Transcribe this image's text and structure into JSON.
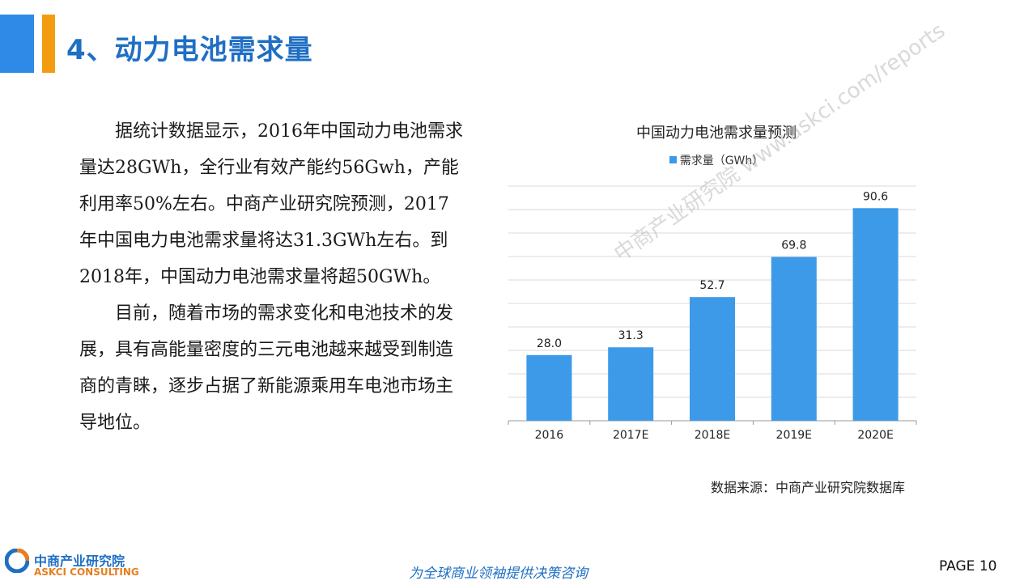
{
  "header": {
    "title": "4、动力电池需求量"
  },
  "body": {
    "paragraph1": "据统计数据显示，2016年中国动力电池需求量达28GWh，全行业有效产能约56Gwh，产能利用率50%左右。中商产业研究院预测，2017年中国电力电池需求量将达31.3GWh左右。到2018年，中国动力电池需求量将超50GWh。",
    "paragraph2": "目前，随着市场的需求变化和电池技术的发展，具有高能量密度的三元电池越来越受到制造商的青睐，逐步占据了新能源乘用车电池市场主导地位。"
  },
  "chart_data": {
    "type": "bar",
    "title": "中国动力电池需求量预测",
    "categories": [
      "2016",
      "2017E",
      "2018E",
      "2019E",
      "2020E"
    ],
    "series": [
      {
        "name": "需求量（GWh）",
        "values": [
          28.0,
          31.3,
          52.7,
          69.8,
          90.6
        ]
      }
    ],
    "data_labels": [
      "28.0",
      "31.3",
      "52.7",
      "69.8",
      "90.6"
    ],
    "ylim": [
      0,
      100
    ],
    "grid": true,
    "legend": "top-center",
    "color": "#3d9ae8"
  },
  "source": "数据来源：中商产业研究院数据库",
  "watermark": "中商产业研究院 www.askci.com/reports",
  "footer": {
    "logo_cn": "中商产业研究院",
    "logo_en": "ASKCI CONSULTING",
    "slogan": "为全球商业领袖提供决策咨询",
    "page": "PAGE  10"
  },
  "colors": {
    "accent_blue": "#2e8ae6",
    "accent_orange": "#f39c12",
    "title": "#1f6fc4"
  }
}
